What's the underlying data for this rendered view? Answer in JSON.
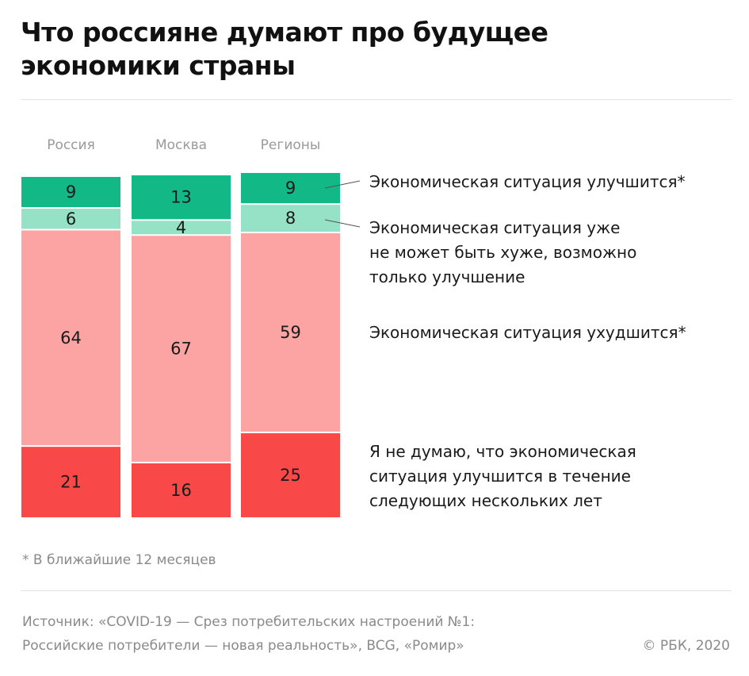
{
  "title_line1": "Что россияне думают про будущее",
  "title_line2": "экономики страны",
  "footnote": "* В ближайшие 12 месяцев",
  "source_line1": "Источник: «COVID-19 — Срез потребительских настроений №1:",
  "source_line2": "Российские потребители — новая реальность», BCG, «Ромир»",
  "copyright": "© РБК, 2020",
  "colors": {
    "improve": "#12b886",
    "cant_worse": "#96e2c6",
    "worsen": "#fca3a3",
    "no_improve": "#f84848"
  },
  "chart_data": {
    "type": "bar",
    "stacked": true,
    "categories": [
      "Россия",
      "Москва",
      "Регионы"
    ],
    "series": [
      {
        "name": "Экономическая ситуация улучшится*",
        "values": [
          9,
          13,
          9
        ]
      },
      {
        "name": "Экономическая ситуация уже не может быть хуже, возможно только улучшение",
        "values": [
          6,
          4,
          8
        ]
      },
      {
        "name": "Экономическая ситуация ухудшится*",
        "values": [
          64,
          67,
          59
        ]
      },
      {
        "name": "Я не думаю, что экономическая ситуация улучшится в течение следующих нескольких лет",
        "values": [
          21,
          16,
          25
        ]
      }
    ],
    "legend_lines": [
      [
        "Экономическая ситуация улучшится*"
      ],
      [
        "Экономическая ситуация уже",
        "не может быть хуже, возможно",
        "только улучшение"
      ],
      [
        "Экономическая ситуация ухудшится*"
      ],
      [
        "Я не думаю, что экономическая",
        "ситуация улучшится в течение",
        "следующих нескольких лет"
      ]
    ],
    "legend_placement": "right",
    "xlabel": "",
    "ylabel": "",
    "grid": false
  }
}
